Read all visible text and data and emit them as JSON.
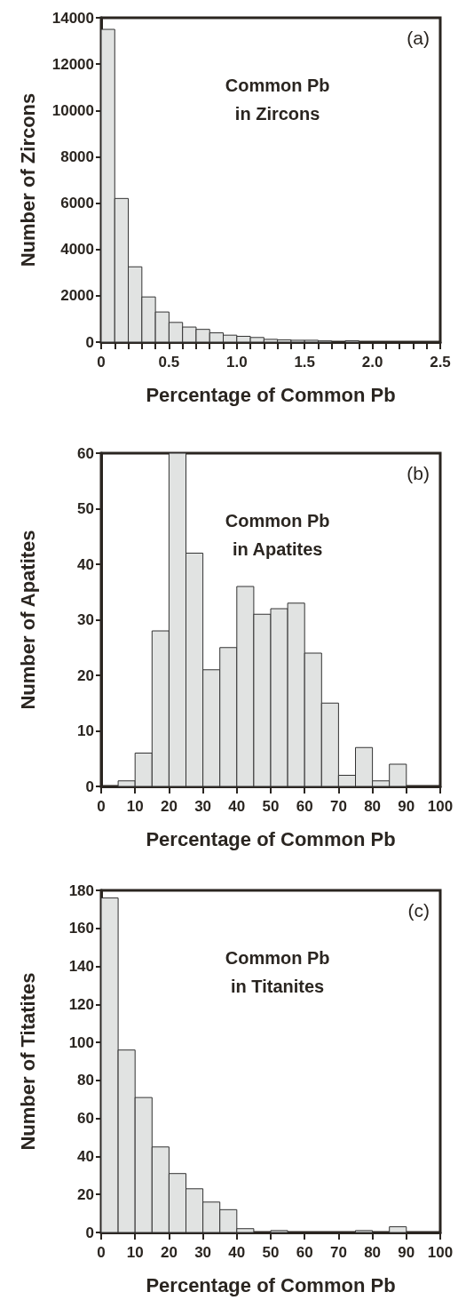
{
  "chart_data": [
    {
      "type": "histogram",
      "xlabel": "Percentage of Common Pb",
      "ylabel": "Number of Zircons",
      "annotations": [
        "(a)",
        "Common Pb\nin Zircons"
      ],
      "color": "#e1e3e2",
      "bins": [
        0,
        0.1,
        0.2,
        0.3,
        0.4,
        0.5,
        0.6,
        0.7,
        0.8,
        0.9,
        1.0,
        1.1,
        1.2,
        1.3,
        1.4,
        1.5,
        1.6,
        1.7,
        1.8,
        1.9
      ],
      "values": [
        13500,
        6200,
        3250,
        1950,
        1300,
        850,
        650,
        550,
        400,
        300,
        250,
        200,
        120,
        100,
        80,
        80,
        50,
        0,
        60
      ],
      "xlim": [
        0,
        2.5
      ],
      "ylim": [
        0,
        14000
      ],
      "xticks": [
        0,
        {
          "value": 0.1,
          "label": null
        },
        {
          "value": 0.2,
          "label": null
        },
        {
          "value": 0.3,
          "label": null
        },
        {
          "value": 0.4,
          "label": null
        },
        0.5,
        {
          "value": 0.6,
          "label": null
        },
        {
          "value": 0.7,
          "label": null
        },
        {
          "value": 0.8,
          "label": null
        },
        {
          "value": 0.9,
          "label": null
        },
        {
          "value": 1,
          "label": "1.0"
        },
        {
          "value": 1.1,
          "label": null
        },
        {
          "value": 1.2,
          "label": null
        },
        {
          "value": 1.3,
          "label": null
        },
        {
          "value": 1.4,
          "label": null
        },
        1.5,
        {
          "value": 1.6,
          "label": null
        },
        {
          "value": 1.7,
          "label": null
        },
        {
          "value": 1.8,
          "label": null
        },
        {
          "value": 1.9,
          "label": null
        },
        {
          "value": 2,
          "label": "2.0"
        },
        {
          "value": 2.1,
          "label": null
        },
        {
          "value": 2.2,
          "label": null
        },
        {
          "value": 2.3,
          "label": null
        },
        {
          "value": 2.4,
          "label": null
        },
        2.5
      ],
      "yticks": [
        0,
        2000,
        4000,
        6000,
        8000,
        10000,
        12000,
        14000
      ]
    },
    {
      "type": "histogram",
      "xlabel": "Percentage of Common Pb",
      "ylabel": "Number of Apatites",
      "annotations": [
        "(b)",
        "Common Pb\nin Apatites"
      ],
      "color": "#e1e3e2",
      "bins": [
        5,
        10,
        15,
        20,
        25,
        30,
        35,
        40,
        45,
        50,
        55,
        60,
        65,
        70,
        75,
        80,
        85,
        90
      ],
      "values": [
        1,
        6,
        28,
        60,
        42,
        21,
        25,
        36,
        31,
        32,
        33,
        24,
        15,
        2,
        7,
        1,
        4
      ],
      "xlim": [
        0,
        100
      ],
      "ylim": [
        0,
        60
      ],
      "xticks": [
        0,
        10,
        20,
        30,
        40,
        50,
        60,
        70,
        80,
        90,
        100
      ],
      "yticks": [
        0,
        10,
        20,
        30,
        40,
        50,
        60
      ]
    },
    {
      "type": "histogram",
      "xlabel": "Percentage of Common Pb",
      "ylabel": "Number of Titatites",
      "annotations": [
        "(c)",
        "Common Pb\nin Titanites"
      ],
      "color": "#e1e3e2",
      "bins": [
        0,
        5,
        10,
        15,
        20,
        25,
        30,
        35,
        40,
        45,
        50,
        55,
        60,
        65,
        70,
        75,
        80,
        85,
        90
      ],
      "values": [
        176,
        96,
        71,
        45,
        31,
        23,
        16,
        12,
        2,
        0,
        1,
        0,
        0,
        0,
        0,
        1,
        0,
        3
      ],
      "xlim": [
        0,
        100
      ],
      "ylim": [
        0,
        180
      ],
      "xticks": [
        0,
        10,
        20,
        30,
        40,
        50,
        60,
        70,
        80,
        90,
        100
      ],
      "yticks": [
        0,
        20,
        40,
        60,
        80,
        100,
        120,
        140,
        160,
        180
      ]
    }
  ]
}
